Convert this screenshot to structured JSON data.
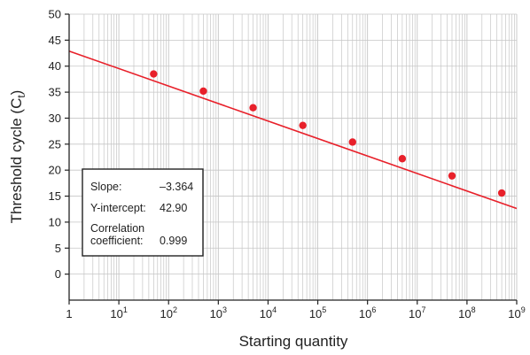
{
  "chart_data": {
    "type": "scatter",
    "title": "",
    "xlabel": "Starting quantity",
    "ylabel": "Threshold cycle (C",
    "ylabel_subscript": "t",
    "ylabel_close": ")",
    "x_scale": "log",
    "xlim": [
      1,
      1000000000
    ],
    "ylim": [
      -5,
      50
    ],
    "grid": true,
    "x_ticks": [
      {
        "value": 1,
        "base": "1",
        "exp": ""
      },
      {
        "value": 10,
        "base": "10",
        "exp": "1"
      },
      {
        "value": 100,
        "base": "10",
        "exp": "2"
      },
      {
        "value": 1000,
        "base": "10",
        "exp": "3"
      },
      {
        "value": 10000,
        "base": "10",
        "exp": "4"
      },
      {
        "value": 100000,
        "base": "10",
        "exp": "5"
      },
      {
        "value": 1000000,
        "base": "10",
        "exp": "6"
      },
      {
        "value": 10000000,
        "base": "10",
        "exp": "7"
      },
      {
        "value": 100000000,
        "base": "10",
        "exp": "8"
      },
      {
        "value": 1000000000,
        "base": "10",
        "exp": "9"
      }
    ],
    "y_ticks": [
      "0",
      "5",
      "10",
      "15",
      "20",
      "25",
      "30",
      "35",
      "40",
      "45",
      "50"
    ],
    "points": {
      "x": [
        50,
        500,
        5000,
        50000,
        500000,
        5000000,
        50000000,
        500000000
      ],
      "y": [
        38.5,
        35.2,
        32.0,
        28.6,
        25.4,
        22.2,
        18.9,
        15.6
      ]
    },
    "fit_line": {
      "slope": -3.364,
      "intercept": 42.9
    },
    "colors": {
      "series": "#e8202a",
      "grid": "#c6c6c6",
      "axis": "#222222"
    },
    "stats": {
      "slope_label": "Slope:",
      "slope_value": "–3.364",
      "intercept_label": "Y-intercept:",
      "intercept_value": "42.90",
      "corr_label_line1": "Correlation",
      "corr_label_line2": "coefficient:",
      "corr_value": "0.999"
    }
  }
}
